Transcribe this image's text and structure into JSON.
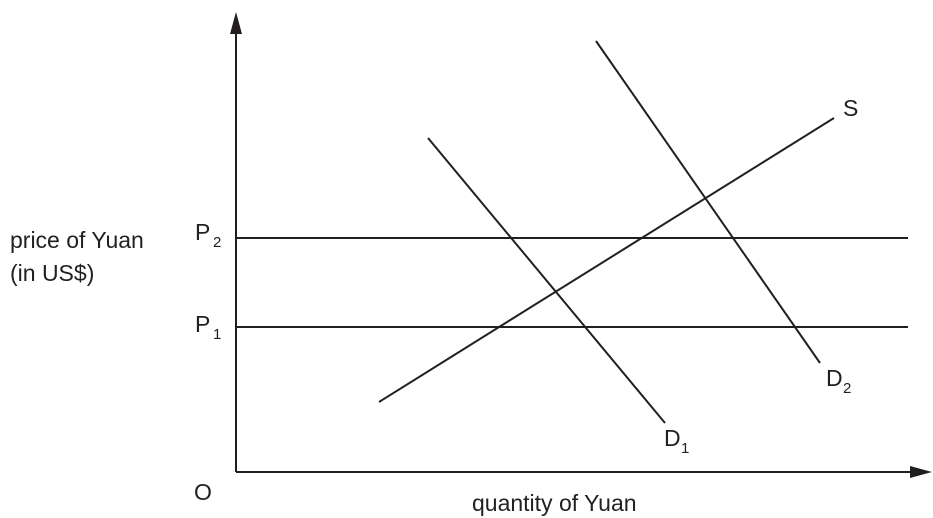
{
  "axes": {
    "y_label_line1": "price of Yuan",
    "y_label_line2": "(in US$)",
    "x_label": "quantity of Yuan",
    "origin_label": "O"
  },
  "prices": [
    {
      "letter": "P",
      "subscript": "2"
    },
    {
      "letter": "P",
      "subscript": "1"
    }
  ],
  "curves": {
    "supply": {
      "label": "S"
    },
    "demand_1": {
      "letter": "D",
      "subscript": "1"
    },
    "demand_2": {
      "letter": "D",
      "subscript": "2"
    }
  },
  "colors": {
    "ink": "#231f20",
    "background": "#ffffff"
  }
}
